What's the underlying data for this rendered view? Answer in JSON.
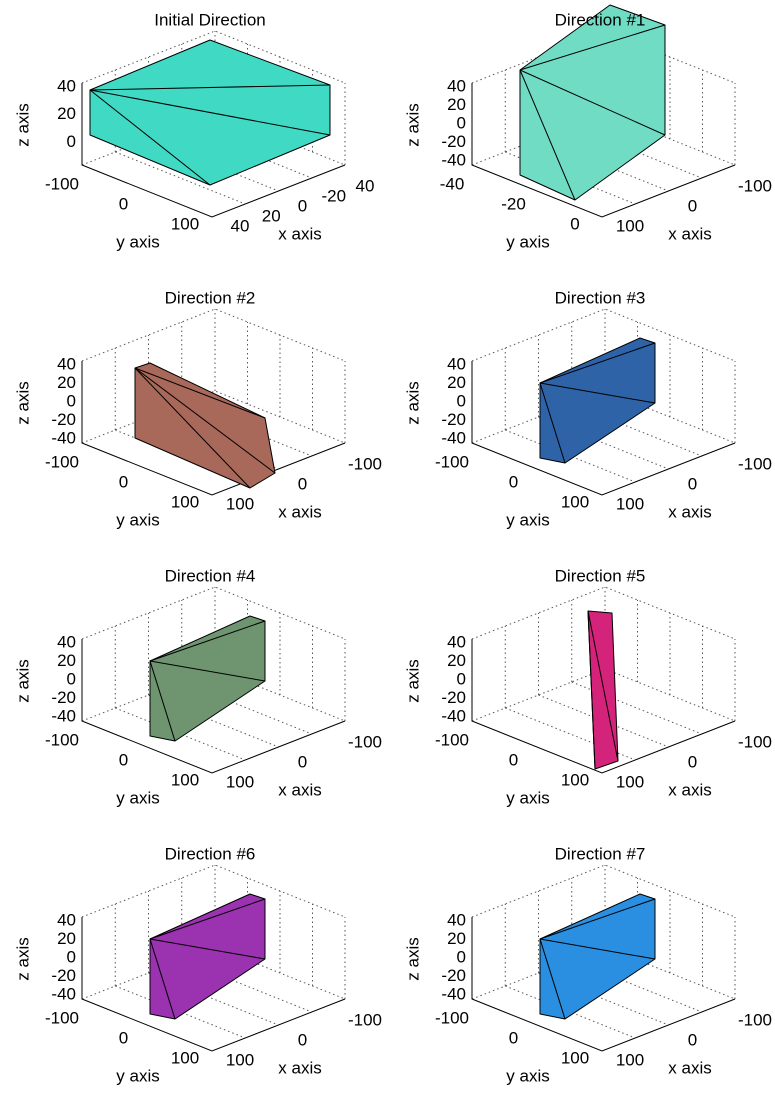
{
  "panels": [
    {
      "title": "Initial Direction",
      "zlabel": "z axis",
      "ylabel": "y axis",
      "xlabel": "x axis",
      "zticks": [
        40,
        20,
        0
      ],
      "yticks": [
        -100,
        0,
        100
      ],
      "xticks": [
        40,
        20,
        0,
        -20,
        40
      ]
    },
    {
      "title": "Direction #1",
      "zlabel": "z axis",
      "ylabel": "y axis",
      "xlabel": "x axis",
      "zticks": [
        40,
        20,
        0,
        -20,
        -40
      ],
      "yticks": [
        -40,
        -20,
        0
      ],
      "xticks": [
        100,
        0,
        -100
      ]
    },
    {
      "title": "Direction #2",
      "zlabel": "z axis",
      "ylabel": "y axis",
      "xlabel": "x axis",
      "zticks": [
        40,
        20,
        0,
        -20,
        -40
      ],
      "yticks": [
        -100,
        0,
        100
      ],
      "xticks": [
        100,
        0,
        -100
      ]
    },
    {
      "title": "Direction #3",
      "zlabel": "z axis",
      "ylabel": "y axis",
      "xlabel": "x axis",
      "zticks": [
        40,
        20,
        0,
        -20,
        -40
      ],
      "yticks": [
        -100,
        0,
        100
      ],
      "xticks": [
        100,
        0,
        -100
      ]
    },
    {
      "title": "Direction #4",
      "zlabel": "z axis",
      "ylabel": "y axis",
      "xlabel": "x axis",
      "zticks": [
        40,
        20,
        0,
        -20,
        -40
      ],
      "yticks": [
        -100,
        0,
        100
      ],
      "xticks": [
        100,
        0,
        -100
      ]
    },
    {
      "title": "Direction #5",
      "zlabel": "z axis",
      "ylabel": "y axis",
      "xlabel": "x axis",
      "zticks": [
        40,
        20,
        0,
        -20,
        -40
      ],
      "yticks": [
        -100,
        0,
        100
      ],
      "xticks": [
        100,
        0,
        -100
      ]
    },
    {
      "title": "Direction #6",
      "zlabel": "z axis",
      "ylabel": "y axis",
      "xlabel": "x axis",
      "zticks": [
        40,
        20,
        0,
        -20,
        -40
      ],
      "yticks": [
        -100,
        0,
        100
      ],
      "xticks": [
        100,
        0,
        -100
      ]
    },
    {
      "title": "Direction #7",
      "zlabel": "z axis",
      "ylabel": "y axis",
      "xlabel": "x axis",
      "zticks": [
        40,
        20,
        0,
        -20,
        -40
      ],
      "yticks": [
        -100,
        0,
        100
      ],
      "xticks": [
        100,
        0,
        -100
      ]
    }
  ]
}
